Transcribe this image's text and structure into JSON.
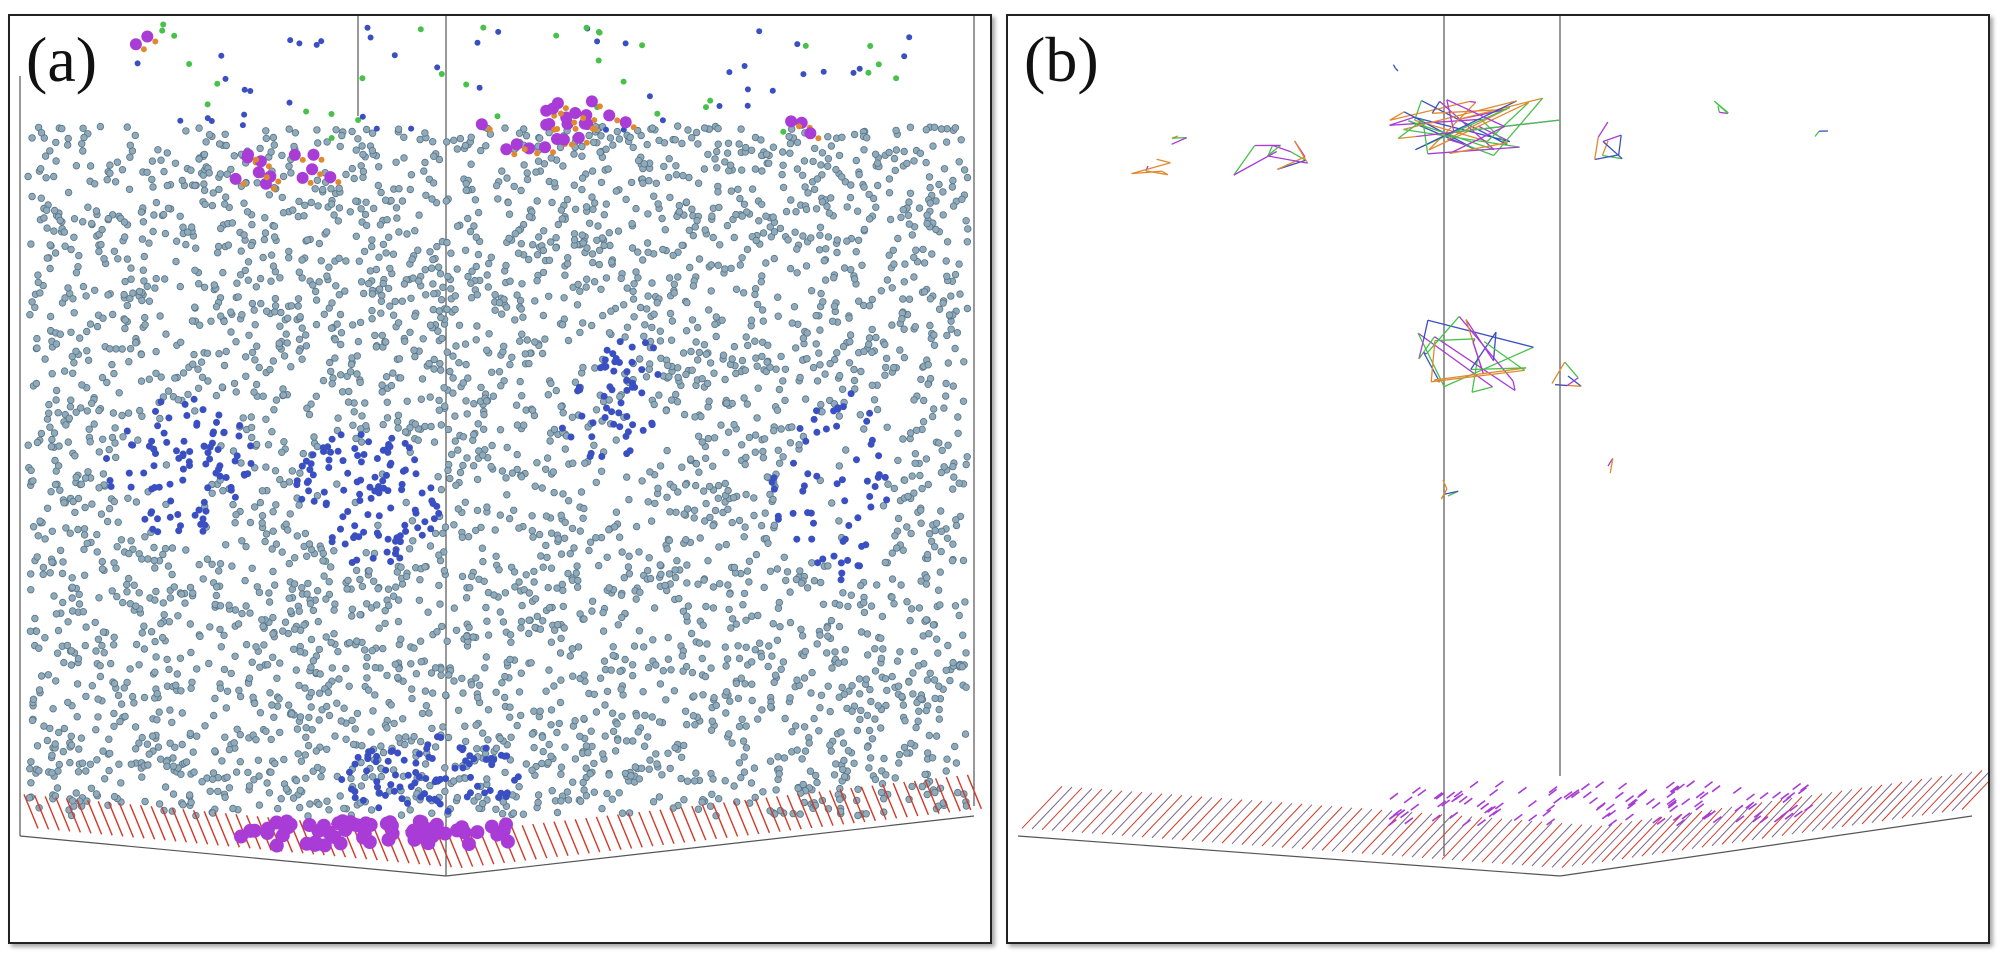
{
  "panels": [
    {
      "label": "(a)"
    },
    {
      "label": "(b)"
    }
  ],
  "colors": {
    "water": "#8faabb",
    "water_stroke": "#5a7585",
    "blue_ion": "#3a4fc2",
    "magenta_ion": "#a93bd6",
    "green_atom": "#47c14a",
    "orange_atom": "#e08a30",
    "substrate_red": "#d23a2a",
    "substrate_line": "#7c6b8a",
    "box_line": "#555555"
  }
}
